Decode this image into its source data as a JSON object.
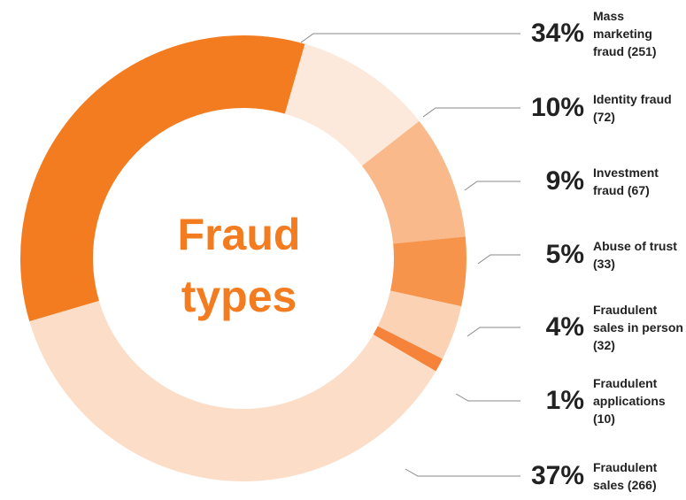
{
  "chart_data": {
    "type": "donut",
    "title": [
      "Fraud",
      "types"
    ],
    "categories": [
      "Mass marketing fraud (251)",
      "Identity fraud (72)",
      "Investment fraud (67)",
      "Abuse of trust (33)",
      "Fraudulent sales in person (32)",
      "Fraudulent applications (10)",
      "Fraudulent sales (266)"
    ],
    "values": [
      34,
      10,
      9,
      5,
      4,
      1,
      37
    ],
    "value_labels": [
      "34%",
      "10%",
      "9%",
      "5%",
      "4%",
      "1%",
      "37%"
    ],
    "colors": [
      "#f47c20",
      "#fde9dc",
      "#f9b98b",
      "#f7944c",
      "#fbd2b3",
      "#f5843a",
      "#fcdec8"
    ]
  }
}
